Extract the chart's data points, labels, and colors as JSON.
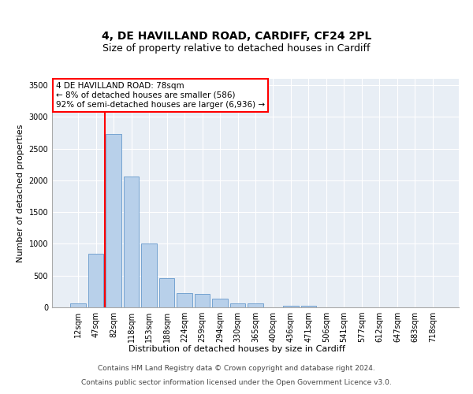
{
  "title": "4, DE HAVILLAND ROAD, CARDIFF, CF24 2PL",
  "subtitle": "Size of property relative to detached houses in Cardiff",
  "xlabel": "Distribution of detached houses by size in Cardiff",
  "ylabel": "Number of detached properties",
  "categories": [
    "12sqm",
    "47sqm",
    "82sqm",
    "118sqm",
    "153sqm",
    "188sqm",
    "224sqm",
    "259sqm",
    "294sqm",
    "330sqm",
    "365sqm",
    "400sqm",
    "436sqm",
    "471sqm",
    "506sqm",
    "541sqm",
    "577sqm",
    "612sqm",
    "647sqm",
    "683sqm",
    "718sqm"
  ],
  "values": [
    60,
    850,
    2730,
    2065,
    1005,
    455,
    225,
    215,
    140,
    65,
    60,
    0,
    30,
    30,
    0,
    0,
    0,
    0,
    0,
    0,
    0
  ],
  "bar_color": "#b8d0ea",
  "bar_edge_color": "#6699cc",
  "background_color": "#e8eef5",
  "annotation_text": "4 DE HAVILLAND ROAD: 78sqm\n← 8% of detached houses are smaller (586)\n92% of semi-detached houses are larger (6,936) →",
  "annotation_box_color": "white",
  "annotation_border_color": "red",
  "property_line_color": "red",
  "property_line_xindex": 2,
  "ylim": [
    0,
    3600
  ],
  "yticks": [
    0,
    500,
    1000,
    1500,
    2000,
    2500,
    3000,
    3500
  ],
  "footer_line1": "Contains HM Land Registry data © Crown copyright and database right 2024.",
  "footer_line2": "Contains public sector information licensed under the Open Government Licence v3.0.",
  "title_fontsize": 10,
  "subtitle_fontsize": 9,
  "xlabel_fontsize": 8,
  "ylabel_fontsize": 8,
  "tick_fontsize": 7,
  "annotation_fontsize": 7.5,
  "footer_fontsize": 6.5
}
